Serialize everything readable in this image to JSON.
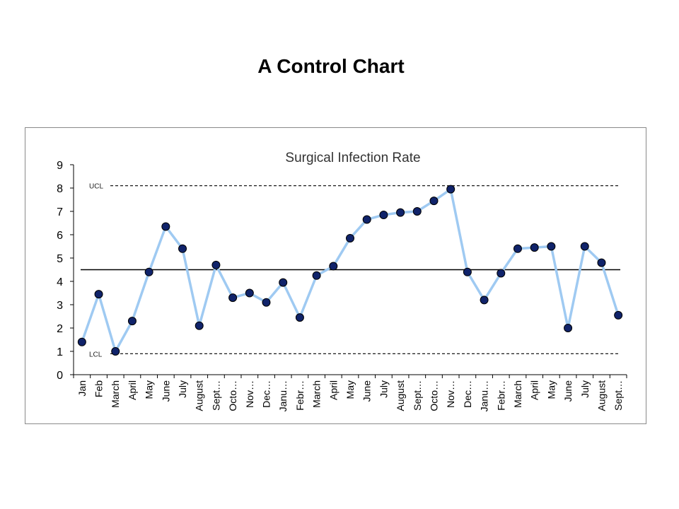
{
  "page": {
    "title": "A Control Chart"
  },
  "chart_data": {
    "type": "line",
    "title": "Surgical Infection Rate",
    "xlabel": "",
    "ylabel": "",
    "ylim": [
      0,
      9
    ],
    "yticks": [
      "0",
      "1",
      "2",
      "3",
      "4",
      "5",
      "6",
      "7",
      "8",
      "9"
    ],
    "categories": [
      "Jan",
      "Feb",
      "March",
      "April",
      "May",
      "June",
      "July",
      "August",
      "Sept…",
      "Octo…",
      "Nov…",
      "Dec…",
      "Janu…",
      "Febr…",
      "March",
      "April",
      "May",
      "June",
      "July",
      "August",
      "Sept…",
      "Octo…",
      "Nov…",
      "Dec…",
      "Janu…",
      "Febr…",
      "March",
      "April",
      "May",
      "June",
      "July",
      "August",
      "Sept…"
    ],
    "series": [
      {
        "values": [
          1.4,
          3.45,
          1.0,
          2.3,
          4.4,
          6.35,
          5.4,
          2.1,
          4.7,
          3.3,
          3.5,
          3.1,
          3.95,
          2.45,
          4.25,
          4.65,
          5.85,
          6.65,
          6.85,
          6.95,
          7.0,
          7.45,
          7.95,
          4.4,
          3.2,
          4.35,
          5.4,
          5.45,
          5.5,
          2.0,
          5.5,
          4.8,
          2.55
        ],
        "line_color": "#9fcaf2",
        "marker_fill": "#10236a",
        "marker_edge": "#000000"
      }
    ],
    "center_line": 4.5,
    "ucl": {
      "label": "UCL",
      "value": 8.1
    },
    "lcl": {
      "label": "LCL",
      "value": 0.9
    },
    "grid": false,
    "legend": "none"
  }
}
